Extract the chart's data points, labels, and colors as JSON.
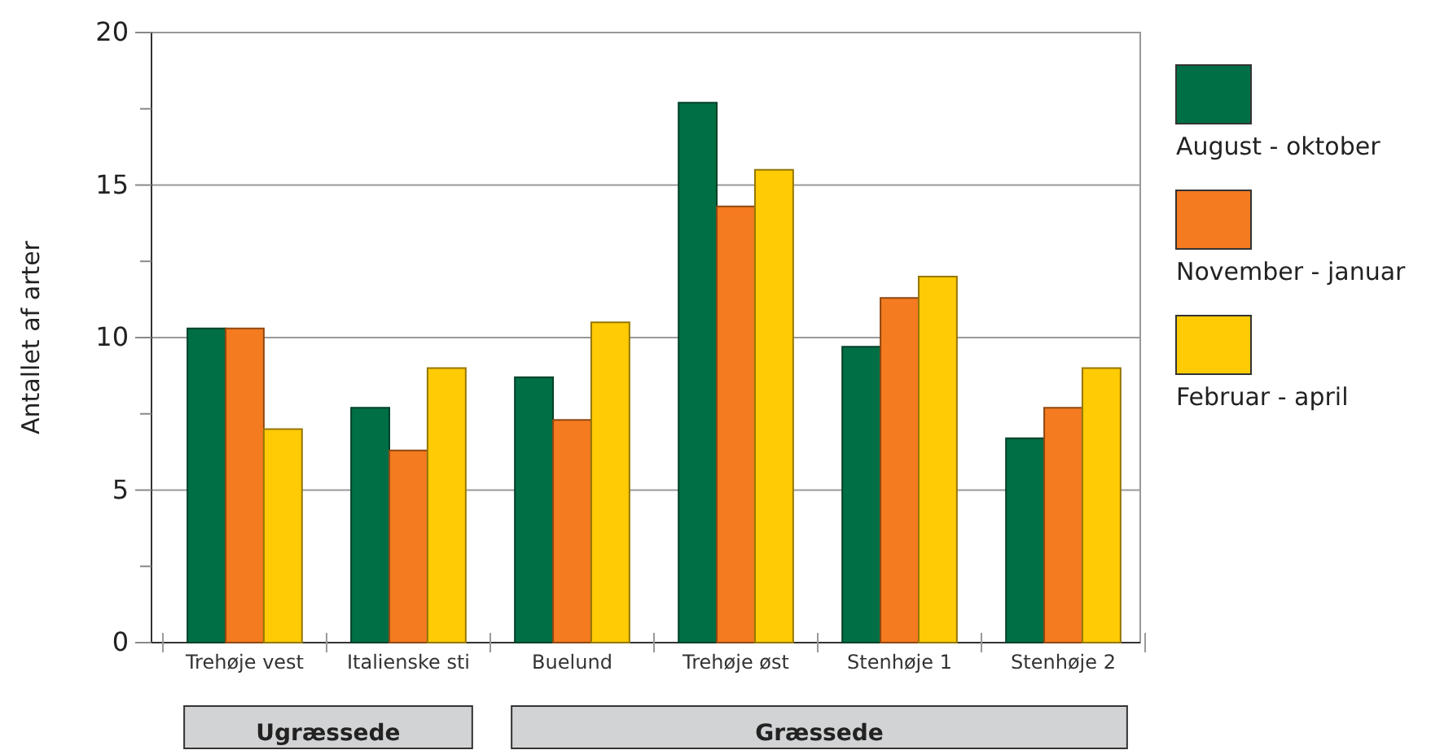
{
  "chart_data": {
    "type": "bar",
    "ylabel": "Antallet af arter",
    "categories": [
      "Trehøje vest",
      "Italienske sti",
      "Buelund",
      "Trehøje øst",
      "Stenhøje 1",
      "Stenhøje 2"
    ],
    "series": [
      {
        "name": "August - oktober",
        "color": "#006f45",
        "values": [
          10.3,
          7.7,
          8.7,
          17.7,
          9.7,
          6.7
        ]
      },
      {
        "name": "November - januar",
        "color": "#f47b20",
        "values": [
          10.3,
          6.3,
          7.3,
          14.3,
          11.3,
          7.7
        ]
      },
      {
        "name": "Februar - april",
        "color": "#ffcb05",
        "values": [
          7.0,
          9.0,
          10.5,
          15.5,
          12.0,
          9.0
        ]
      }
    ],
    "ylim": [
      0,
      20
    ],
    "yticks": [
      0,
      {
        "value": 2.5,
        "label": null
      },
      5,
      {
        "value": 7.5,
        "label": null
      },
      10,
      {
        "value": 12.5,
        "label": null
      },
      15,
      {
        "value": 17.5,
        "label": null
      },
      20
    ],
    "grid": "y",
    "legend": "right",
    "annotations": [
      "Ugræssede",
      "Græssede"
    ]
  }
}
